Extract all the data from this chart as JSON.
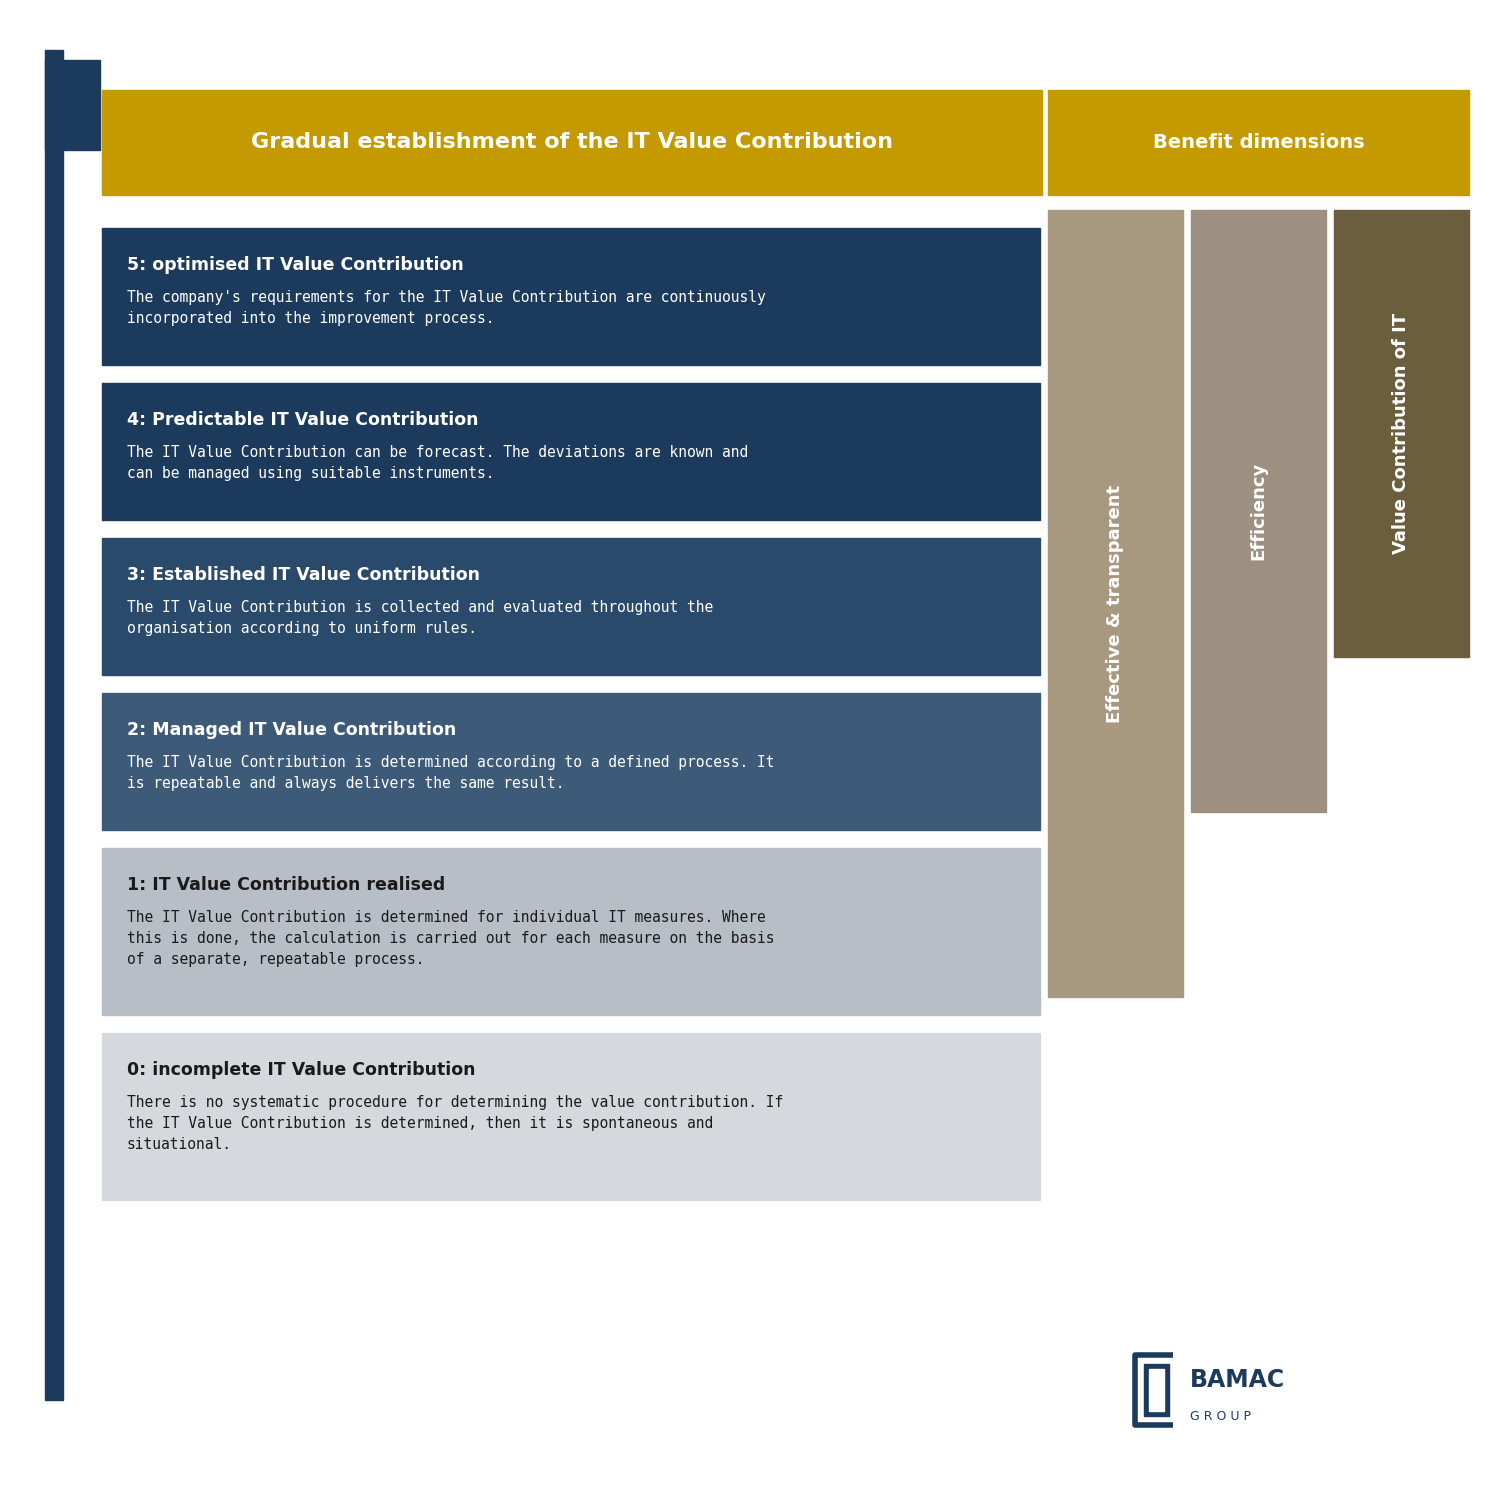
{
  "title_main": "Gradual establishment of the IT Value Contribution",
  "title_benefit": "Benefit dimensions",
  "bg_color": "#ffffff",
  "header_color": "#C49A00",
  "vertical_line_color": "#1B3A5C",
  "stages": [
    {
      "number": "5",
      "title": "5: optimised IT Value Contribution",
      "description": "The company's requirements for the IT Value Contribution are continuously\nincorporated into the improvement process.",
      "bg_color": "#1B3A5C",
      "text_color": "#ffffff",
      "title_color": "#ffffff"
    },
    {
      "number": "4",
      "title": "4: Predictable IT Value Contribution",
      "description": "The IT Value Contribution can be forecast. The deviations are known and\ncan be managed using suitable instruments.",
      "bg_color": "#1B3A5C",
      "text_color": "#ffffff",
      "title_color": "#ffffff"
    },
    {
      "number": "3",
      "title": "3: Established IT Value Contribution",
      "description": "The IT Value Contribution is collected and evaluated throughout the\norganisation according to uniform rules.",
      "bg_color": "#2A4A6B",
      "text_color": "#ffffff",
      "title_color": "#ffffff"
    },
    {
      "number": "2",
      "title": "2: Managed IT Value Contribution",
      "description": "The IT Value Contribution is determined according to a defined process. It\nis repeatable and always delivers the same result.",
      "bg_color": "#3D5A78",
      "text_color": "#ffffff",
      "title_color": "#ffffff"
    },
    {
      "number": "1",
      "title": "1: IT Value Contribution realised",
      "description": "The IT Value Contribution is determined for individual IT measures. Where\nthis is done, the calculation is carried out for each measure on the basis\nof a separate, repeatable process.",
      "bg_color": "#B8BEC6",
      "text_color": "#1a1a1a",
      "title_color": "#1a1a1a"
    },
    {
      "number": "0",
      "title": "0: incomplete IT Value Contribution",
      "description": "There is no systematic procedure for determining the value contribution. If\nthe IT Value Contribution is determined, then it is spontaneous and\nsituational.",
      "bg_color": "#D5D8DC",
      "text_color": "#1a1a1a",
      "title_color": "#1a1a1a"
    }
  ],
  "benefit_cols": [
    {
      "label": "Effective & transparent",
      "color": "#A89880",
      "stages_covered": [
        0,
        1,
        2,
        3,
        4
      ]
    },
    {
      "label": "Efficiency",
      "color": "#9E9080",
      "stages_covered": [
        0,
        1,
        2,
        3
      ]
    },
    {
      "label": "Value Contribution of IT",
      "color": "#6B5E3E",
      "stages_covered": [
        0,
        1,
        2
      ]
    }
  ],
  "logo_color": "#1B3A5C",
  "logo_text": "BAMAC",
  "logo_subtext": "G R O U P"
}
